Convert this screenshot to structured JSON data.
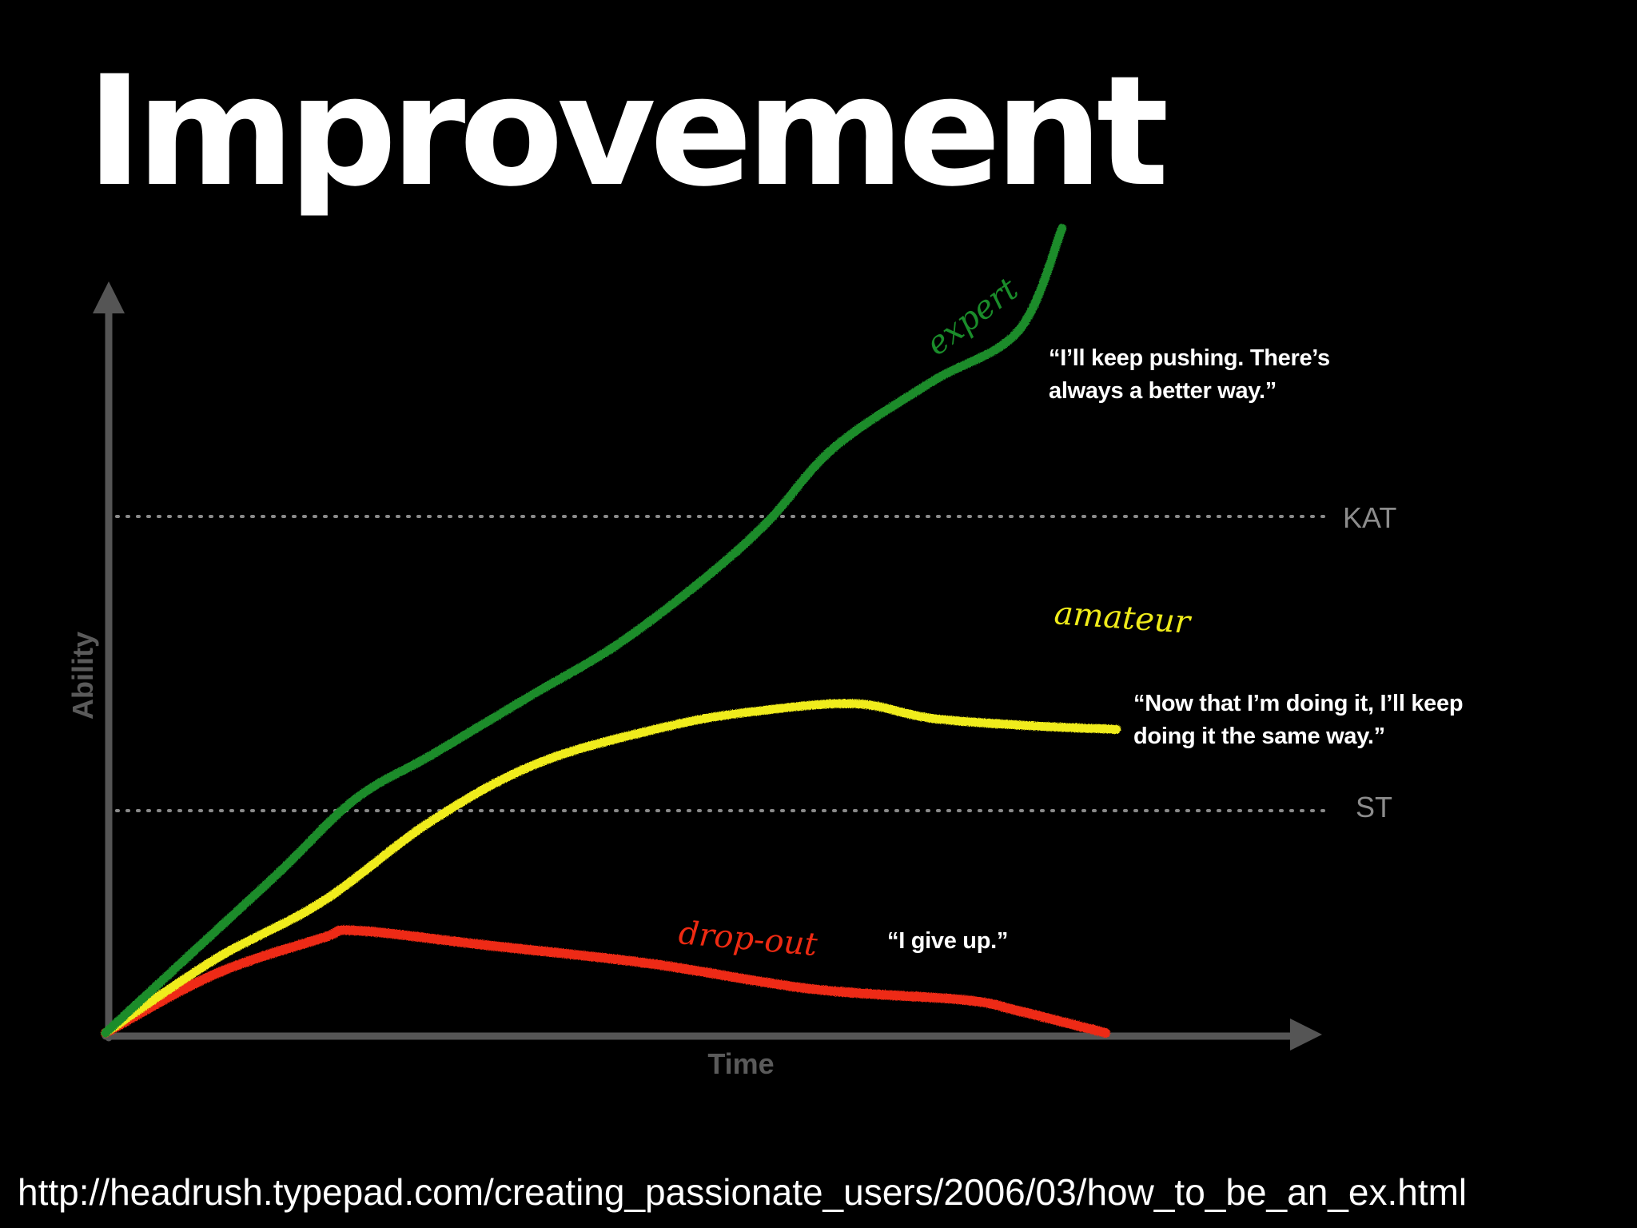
{
  "title": "Improvement",
  "source_url": "http://headrush.typepad.com/creating_passionate_users/2006/03/how_to_be_an_ex.html",
  "colors": {
    "background": "#000000",
    "axis": "#555555",
    "axis_label": "#5a5a5a",
    "reference_line": "#8a8a8a",
    "reference_label": "#8c8c8c",
    "expert": "#1a8c2a",
    "amateur": "#f0ec1a",
    "dropout": "#ee2a12",
    "text": "#ffffff"
  },
  "chart_data": {
    "type": "line",
    "title": "Improvement",
    "xlabel": "Time",
    "ylabel": "Ability",
    "grid": false,
    "legend": "none",
    "reference_lines": [
      {
        "label": "KAT",
        "y": 70
      },
      {
        "label": "ST",
        "y": 31
      }
    ],
    "series": [
      {
        "name": "expert",
        "color": "#1a8c2a",
        "quote": "“I’ll keep pushing. There’s always a better way.”",
        "points": [
          [
            0,
            0
          ],
          [
            8,
            11
          ],
          [
            16,
            22
          ],
          [
            23,
            32
          ],
          [
            30,
            38
          ],
          [
            39,
            46
          ],
          [
            47,
            53
          ],
          [
            55,
            62
          ],
          [
            61,
            70
          ],
          [
            67,
            80
          ],
          [
            76,
            89
          ],
          [
            84,
            96
          ],
          [
            88,
            110
          ]
        ]
      },
      {
        "name": "amateur",
        "color": "#f0ec1a",
        "quote": "“Now that I’m doing it, I’ll keep doing it the same way.”",
        "points": [
          [
            0,
            0
          ],
          [
            10,
            10
          ],
          [
            20,
            18
          ],
          [
            30,
            29
          ],
          [
            40,
            37
          ],
          [
            52,
            42
          ],
          [
            60,
            44
          ],
          [
            69,
            45
          ],
          [
            76,
            43
          ],
          [
            85,
            42
          ],
          [
            93,
            41.5
          ]
        ]
      },
      {
        "name": "drop-out",
        "color": "#ee2a12",
        "quote": "“I give up.”",
        "points": [
          [
            0,
            0
          ],
          [
            10,
            8
          ],
          [
            20,
            13
          ],
          [
            23,
            14
          ],
          [
            35,
            12
          ],
          [
            50,
            9.5
          ],
          [
            65,
            6
          ],
          [
            79,
            4.5
          ],
          [
            84,
            3
          ],
          [
            92,
            0
          ]
        ]
      }
    ]
  }
}
